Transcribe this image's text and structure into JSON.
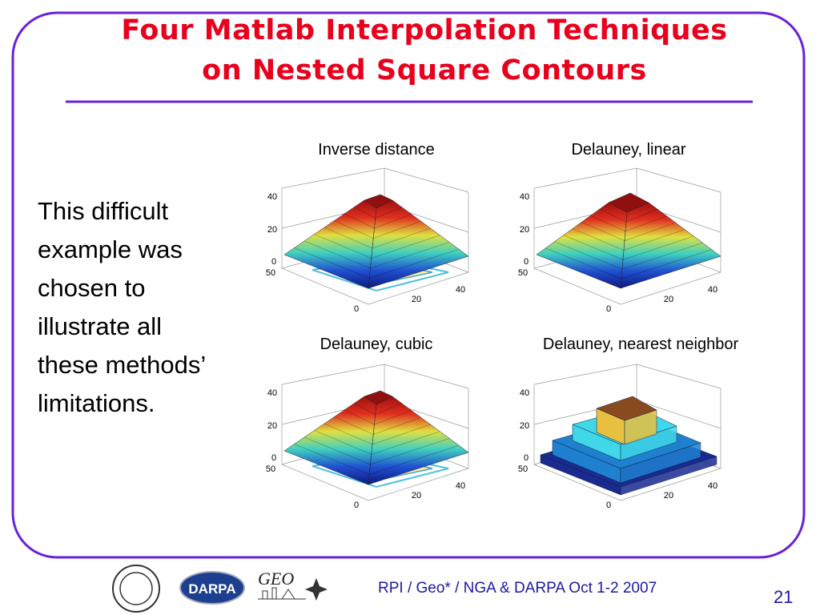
{
  "title": [
    "Four Matlab Interpolation Techniques",
    "on Nested Square Contours"
  ],
  "body_text": [
    "This difficult",
    "example was",
    "chosen to",
    "illustrate all",
    "these methods’",
    "limitations."
  ],
  "plots": [
    {
      "title": "Inverse distance",
      "tick_labels": [
        "40",
        "20",
        "0",
        "50",
        "0",
        "20",
        "40"
      ]
    },
    {
      "title": "Delauney, linear",
      "tick_labels": [
        "40",
        "20",
        "0",
        "50",
        "0",
        "20",
        "40"
      ]
    },
    {
      "title": "Delauney, cubic",
      "tick_labels": [
        "40",
        "20",
        "0",
        "50",
        "0",
        "20",
        "40"
      ]
    },
    {
      "title": "Delauney, nearest neighbor",
      "tick_labels": [
        "40",
        "20",
        "0",
        "50",
        "0",
        "20",
        "40"
      ]
    }
  ],
  "footer": {
    "logos": [
      "DARPA",
      "GEO"
    ],
    "text": "RPI / Geo* /  NGA & DARPA  Oct 1-2 2007",
    "page_number": "21"
  }
}
